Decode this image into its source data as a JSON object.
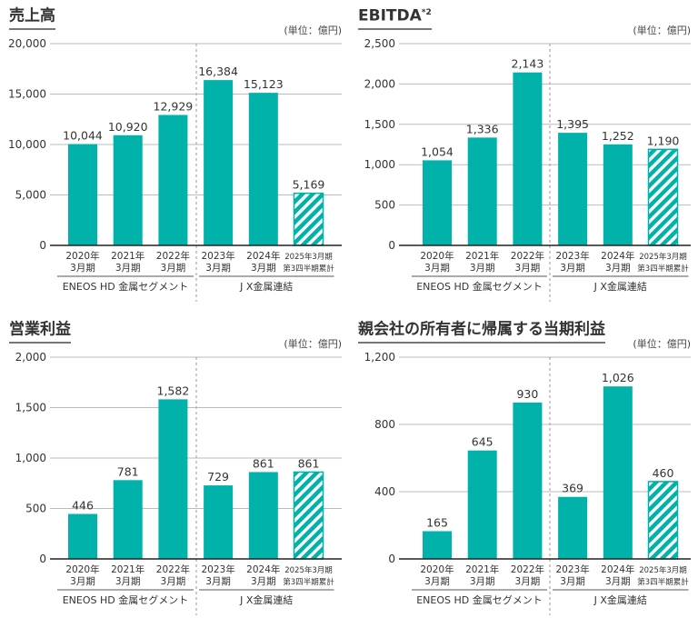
{
  "colors": {
    "bar": "#00B2A9",
    "grid": "#bbbbbb",
    "axis": "#222222",
    "text": "#333333"
  },
  "chart_data": [
    {
      "type": "bar",
      "title": "売上高",
      "title_sup": "",
      "unit": "(単位：億円)",
      "categories": [
        [
          "2020年",
          "3月期"
        ],
        [
          "2021年",
          "3月期"
        ],
        [
          "2022年",
          "3月期"
        ],
        [
          "2023年",
          "3月期"
        ],
        [
          "2024年",
          "3月期"
        ],
        [
          "2025年3月期",
          "第3四半期累計"
        ]
      ],
      "values": [
        10044,
        10920,
        12929,
        16384,
        15123,
        5169
      ],
      "labels": [
        "10,044",
        "10,920",
        "12,929",
        "16,384",
        "15,123",
        "5,169"
      ],
      "hatched": [
        false,
        false,
        false,
        false,
        false,
        true
      ],
      "ylim": [
        0,
        20000
      ],
      "yticks": [
        0,
        5000,
        10000,
        15000,
        20000
      ],
      "ytick_labels": [
        "0",
        "5,000",
        "10,000",
        "15,000",
        "20,000"
      ],
      "groups": [
        {
          "label": "ENEOS HD 金属セグメント",
          "count": 3
        },
        {
          "label": "J X金属連結",
          "count": 3
        }
      ],
      "grid": true
    },
    {
      "type": "bar",
      "title": "EBITDA",
      "title_sup": "*2",
      "unit": "(単位：億円)",
      "categories": [
        [
          "2020年",
          "3月期"
        ],
        [
          "2021年",
          "3月期"
        ],
        [
          "2022年",
          "3月期"
        ],
        [
          "2023年",
          "3月期"
        ],
        [
          "2024年",
          "3月期"
        ],
        [
          "2025年3月期",
          "第3四半期累計"
        ]
      ],
      "values": [
        1054,
        1336,
        2143,
        1395,
        1252,
        1190
      ],
      "labels": [
        "1,054",
        "1,336",
        "2,143",
        "1,395",
        "1,252",
        "1,190"
      ],
      "hatched": [
        false,
        false,
        false,
        false,
        false,
        true
      ],
      "ylim": [
        0,
        2500
      ],
      "yticks": [
        0,
        500,
        1000,
        1500,
        2000,
        2500
      ],
      "ytick_labels": [
        "0",
        "500",
        "1,000",
        "1,500",
        "2,000",
        "2,500"
      ],
      "groups": [
        {
          "label": "ENEOS HD 金属セグメント",
          "count": 3
        },
        {
          "label": "J X金属連結",
          "count": 3
        }
      ],
      "grid": true
    },
    {
      "type": "bar",
      "title": "営業利益",
      "title_sup": "",
      "unit": "(単位：億円)",
      "categories": [
        [
          "2020年",
          "3月期"
        ],
        [
          "2021年",
          "3月期"
        ],
        [
          "2022年",
          "3月期"
        ],
        [
          "2023年",
          "3月期"
        ],
        [
          "2024年",
          "3月期"
        ],
        [
          "2025年3月期",
          "第3四半期累計"
        ]
      ],
      "values": [
        446,
        781,
        1582,
        729,
        861,
        861
      ],
      "labels": [
        "446",
        "781",
        "1,582",
        "729",
        "861",
        "861"
      ],
      "hatched": [
        false,
        false,
        false,
        false,
        false,
        true
      ],
      "ylim": [
        0,
        2000
      ],
      "yticks": [
        0,
        500,
        1000,
        1500,
        2000
      ],
      "ytick_labels": [
        "0",
        "500",
        "1,000",
        "1,500",
        "2,000"
      ],
      "groups": [
        {
          "label": "ENEOS HD 金属セグメント",
          "count": 3
        },
        {
          "label": "J X金属連結",
          "count": 3
        }
      ],
      "grid": true
    },
    {
      "type": "bar",
      "title": "親会社の所有者に帰属する当期利益",
      "title_sup": "",
      "unit": "(単位：億円)",
      "categories": [
        [
          "2020年",
          "3月期"
        ],
        [
          "2021年",
          "3月期"
        ],
        [
          "2022年",
          "3月期"
        ],
        [
          "2023年",
          "3月期"
        ],
        [
          "2024年",
          "3月期"
        ],
        [
          "2025年3月期",
          "第3四半期累計"
        ]
      ],
      "values": [
        165,
        645,
        930,
        369,
        1026,
        460
      ],
      "labels": [
        "165",
        "645",
        "930",
        "369",
        "1,026",
        "460"
      ],
      "hatched": [
        false,
        false,
        false,
        false,
        false,
        true
      ],
      "ylim": [
        0,
        1200
      ],
      "yticks": [
        0,
        400,
        800,
        1200
      ],
      "ytick_labels": [
        "0",
        "400",
        "800",
        "1,200"
      ],
      "groups": [
        {
          "label": "ENEOS HD 金属セグメント",
          "count": 3
        },
        {
          "label": "J X金属連結",
          "count": 3
        }
      ],
      "grid": true
    }
  ]
}
